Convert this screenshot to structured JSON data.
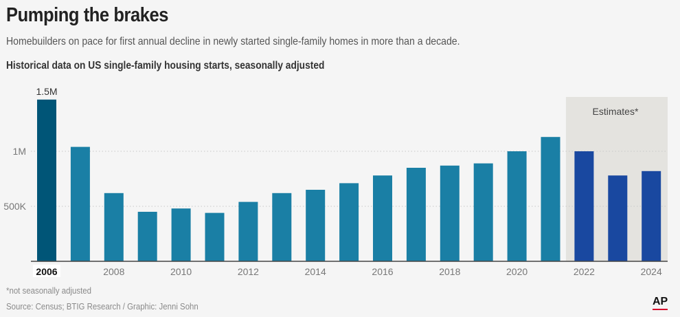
{
  "header": {
    "title": "Pumping the brakes",
    "subtitle": "Homebuilders on pace for first annual decline in newly started single-family homes in more than a decade.",
    "chart_heading": "Historical data on US single-family housing starts, seasonally adjusted"
  },
  "footer": {
    "footnote": "*not seasonally adjusted",
    "source": "Source: Census; BTIG Research / Graphic: Jenni Sohn",
    "logo": "AP"
  },
  "colors": {
    "highlight_2006": "#005577",
    "historical": "#1a7fa5",
    "estimate": "#1948a0",
    "estimate_band": "#e4e3df",
    "gridline": "#c8c8c8",
    "axis": "#444444",
    "tick_text": "#777777"
  },
  "chart_data": {
    "type": "bar",
    "categories": [
      "2006",
      "2007",
      "2008",
      "2009",
      "2010",
      "2011",
      "2012",
      "2013",
      "2014",
      "2015",
      "2016",
      "2017",
      "2018",
      "2019",
      "2020",
      "2021",
      "2022",
      "2023",
      "2024"
    ],
    "values": [
      1470000,
      1040000,
      620000,
      450000,
      480000,
      440000,
      540000,
      620000,
      650000,
      710000,
      780000,
      850000,
      870000,
      890000,
      1000000,
      1130000,
      1000000,
      780000,
      820000
    ],
    "estimate_start": "2022",
    "estimates_label": "Estimates*",
    "highlight_category": "2006",
    "highlight_value_label": "1.5M",
    "x_tick_labels": [
      "2006",
      "2008",
      "2010",
      "2012",
      "2014",
      "2016",
      "2018",
      "2020",
      "2022",
      "2024"
    ],
    "y_ticks": [
      {
        "value": 500000,
        "label": "500K"
      },
      {
        "value": 1000000,
        "label": "1M"
      }
    ],
    "ylim": [
      0,
      1500000
    ],
    "grid": true
  }
}
